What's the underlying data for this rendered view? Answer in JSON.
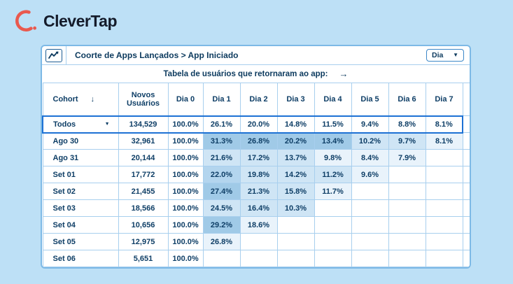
{
  "logo": {
    "brand": "CleverTap"
  },
  "card": {
    "title": "Coorte de Apps Lançados > App Iniciado",
    "dropdown": {
      "value": "Dia"
    },
    "subtitle": "Tabela de usuários que retornaram ao app:"
  },
  "icons": {
    "caret_down": "▼",
    "sort_down": "↓",
    "arrow_right": "→"
  },
  "colors": {
    "page_bg": "#bde0f6",
    "card_border": "#7db9e6",
    "grid_line": "#a8cfee",
    "text_navy": "#0e3e66",
    "highlight_blue": "#1d71d4",
    "logo_red": "#e9594e",
    "heat_scale": [
      "#ffffff",
      "#e9f3fb",
      "#cfe5f5",
      "#b3d5ee",
      "#a0cae7"
    ]
  },
  "table": {
    "columns": [
      "Cohort",
      "Novos Usuários",
      "Dia 0",
      "Dia 1",
      "Dia 2",
      "Dia 3",
      "Dia 4",
      "Dia 5",
      "Dia 6",
      "Dia 7"
    ],
    "rows": [
      {
        "cohort": "Todos",
        "has_dropdown": true,
        "highlighted": true,
        "new_users": "134,529",
        "values": [
          "100.0%",
          "26.1%",
          "20.0%",
          "14.8%",
          "11.5%",
          "9.4%",
          "8.8%",
          "8.1%"
        ],
        "shades": [
          0,
          0,
          0,
          0,
          0,
          0,
          0,
          0
        ]
      },
      {
        "cohort": "Ago 30",
        "new_users": "32,961",
        "values": [
          "100.0%",
          "31.3%",
          "26.8%",
          "20.2%",
          "13.4%",
          "10.2%",
          "9.7%",
          "8.1%"
        ],
        "shades": [
          0,
          4,
          4,
          4,
          4,
          2,
          2,
          1
        ]
      },
      {
        "cohort": "Ago 31",
        "new_users": "20,144",
        "values": [
          "100.0%",
          "21.6%",
          "17.2%",
          "13.7%",
          "9.8%",
          "8.4%",
          "7.9%",
          ""
        ],
        "shades": [
          0,
          2,
          2,
          2,
          1,
          1,
          1,
          0
        ]
      },
      {
        "cohort": "Set 01",
        "new_users": "17,772",
        "values": [
          "100.0%",
          "22.0%",
          "19.8%",
          "14.2%",
          "11.2%",
          "9.6%",
          "",
          ""
        ],
        "shades": [
          0,
          3,
          2,
          2,
          2,
          1,
          0,
          0
        ]
      },
      {
        "cohort": "Set 02",
        "new_users": "21,455",
        "values": [
          "100.0%",
          "27.4%",
          "21.3%",
          "15.8%",
          "11.7%",
          "",
          "",
          ""
        ],
        "shades": [
          0,
          4,
          2,
          2,
          1,
          0,
          0,
          0
        ]
      },
      {
        "cohort": "Set 03",
        "new_users": "18,566",
        "values": [
          "100.0%",
          "24.5%",
          "16.4%",
          "10.3%",
          "",
          "",
          "",
          ""
        ],
        "shades": [
          0,
          2,
          2,
          2,
          0,
          0,
          0,
          0
        ]
      },
      {
        "cohort": "Set 04",
        "new_users": "10,656",
        "values": [
          "100.0%",
          "29.2%",
          "18.6%",
          "",
          "",
          "",
          "",
          ""
        ],
        "shades": [
          0,
          4,
          1,
          0,
          0,
          0,
          0,
          0
        ]
      },
      {
        "cohort": "Set 05",
        "new_users": "12,975",
        "values": [
          "100.0%",
          "26.8%",
          "",
          "",
          "",
          "",
          "",
          ""
        ],
        "shades": [
          0,
          1,
          0,
          0,
          0,
          0,
          0,
          0
        ]
      },
      {
        "cohort": "Set 06",
        "new_users": "5,651",
        "values": [
          "100.0%",
          "",
          "",
          "",
          "",
          "",
          "",
          ""
        ],
        "shades": [
          0,
          0,
          0,
          0,
          0,
          0,
          0,
          0
        ]
      }
    ]
  },
  "chart_data": {
    "type": "table",
    "title": "Coorte de Apps Lançados > App Iniciado",
    "columns": [
      "Cohort",
      "Novos Usuários",
      "Dia 0",
      "Dia 1",
      "Dia 2",
      "Dia 3",
      "Dia 4",
      "Dia 5",
      "Dia 6",
      "Dia 7"
    ],
    "matrix": [
      [
        "Todos",
        134529,
        100.0,
        26.1,
        20.0,
        14.8,
        11.5,
        9.4,
        8.8,
        8.1
      ],
      [
        "Ago 30",
        32961,
        100.0,
        31.3,
        26.8,
        20.2,
        13.4,
        10.2,
        9.7,
        8.1
      ],
      [
        "Ago 31",
        20144,
        100.0,
        21.6,
        17.2,
        13.7,
        9.8,
        8.4,
        7.9,
        null
      ],
      [
        "Set 01",
        17772,
        100.0,
        22.0,
        19.8,
        14.2,
        11.2,
        9.6,
        null,
        null
      ],
      [
        "Set 02",
        21455,
        100.0,
        27.4,
        21.3,
        15.8,
        11.7,
        null,
        null,
        null
      ],
      [
        "Set 03",
        18566,
        100.0,
        24.5,
        16.4,
        10.3,
        null,
        null,
        null,
        null
      ],
      [
        "Set 04",
        10656,
        100.0,
        29.2,
        18.6,
        null,
        null,
        null,
        null,
        null
      ],
      [
        "Set 05",
        12975,
        100.0,
        26.8,
        null,
        null,
        null,
        null,
        null,
        null
      ],
      [
        "Set 06",
        5651,
        100.0,
        null,
        null,
        null,
        null,
        null,
        null,
        null
      ]
    ]
  }
}
